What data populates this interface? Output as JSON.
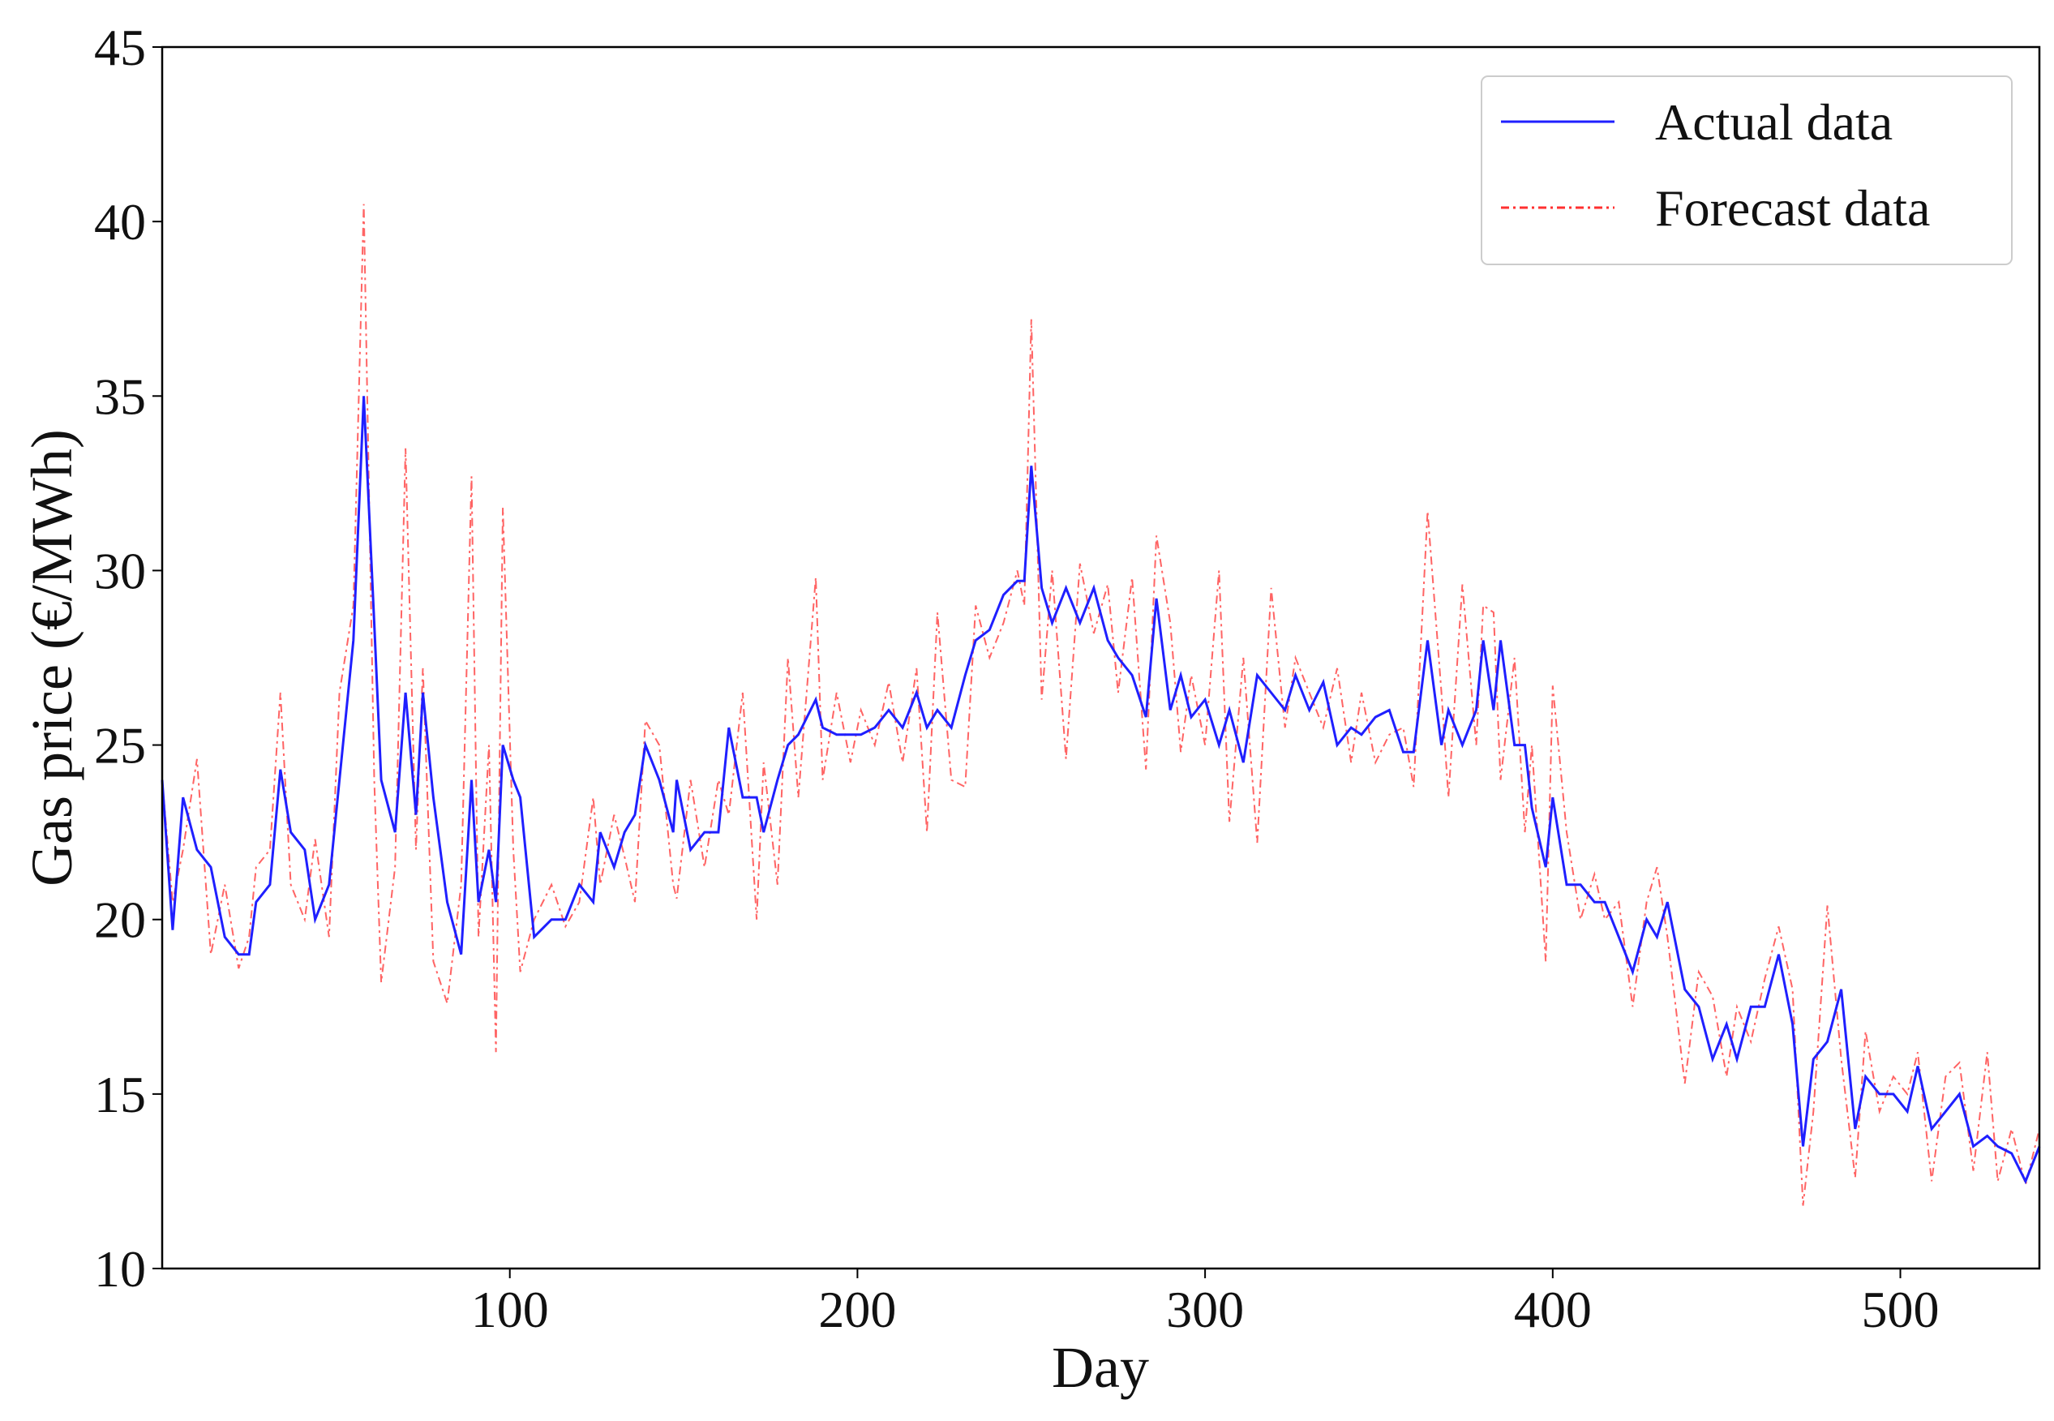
{
  "chart_data": {
    "type": "line",
    "xlabel": "Day",
    "ylabel": "Gas price (€/MWh)",
    "xlim": [
      0,
      540
    ],
    "ylim": [
      10,
      45
    ],
    "xticks": [
      100,
      200,
      300,
      400,
      500
    ],
    "yticks": [
      10,
      15,
      20,
      25,
      30,
      35,
      40,
      45
    ],
    "grid": false,
    "legend": "upper right",
    "x": [
      0,
      3,
      6,
      10,
      14,
      18,
      22,
      25,
      27,
      31,
      34,
      37,
      41,
      44,
      48,
      51,
      55,
      58,
      61,
      63,
      67,
      70,
      73,
      75,
      78,
      82,
      86,
      89,
      91,
      94,
      96,
      98,
      101,
      103,
      107,
      112,
      116,
      120,
      124,
      126,
      130,
      133,
      136,
      139,
      143,
      147,
      148,
      152,
      156,
      160,
      163,
      167,
      171,
      173,
      177,
      180,
      183,
      188,
      190,
      194,
      198,
      201,
      205,
      209,
      213,
      217,
      220,
      223,
      227,
      231,
      234,
      238,
      242,
      246,
      248,
      250,
      253,
      256,
      260,
      264,
      268,
      272,
      275,
      279,
      283,
      286,
      290,
      293,
      296,
      300,
      304,
      307,
      311,
      315,
      319,
      323,
      326,
      330,
      334,
      338,
      342,
      345,
      349,
      353,
      357,
      360,
      364,
      368,
      370,
      374,
      378,
      380,
      383,
      385,
      389,
      392,
      394,
      398,
      400,
      404,
      408,
      412,
      415,
      419,
      423,
      427,
      430,
      433,
      438,
      442,
      446,
      450,
      453,
      457,
      461,
      465,
      469,
      472,
      475,
      479,
      483,
      487,
      490,
      494,
      498,
      502,
      505,
      509,
      513,
      517,
      521,
      525,
      528,
      532,
      536,
      540
    ],
    "series": [
      {
        "name": "Actual data",
        "color": "#1f1fff",
        "style": "solid",
        "values": [
          24,
          19.7,
          23.5,
          22,
          21.5,
          19.5,
          19,
          19,
          20.5,
          21,
          24.3,
          22.5,
          22,
          20,
          21,
          24,
          28,
          35,
          28.5,
          24,
          22.5,
          26.5,
          23,
          26.5,
          23.5,
          20.5,
          19,
          24,
          20.5,
          22,
          20.5,
          25,
          24,
          23.5,
          19.5,
          20,
          20,
          21,
          20.5,
          22.5,
          21.5,
          22.5,
          23,
          25,
          24,
          22.5,
          24,
          22,
          22.5,
          22.5,
          25.5,
          23.5,
          23.5,
          22.5,
          24,
          25,
          25.3,
          26.3,
          25.5,
          25.3,
          25.3,
          25.3,
          25.5,
          26,
          25.5,
          26.5,
          25.5,
          26,
          25.5,
          27,
          28,
          28.3,
          29.3,
          29.7,
          29.7,
          33,
          29.5,
          28.5,
          29.5,
          28.5,
          29.5,
          28,
          27.5,
          27,
          25.8,
          29.2,
          26,
          27,
          25.8,
          26.3,
          25,
          26,
          24.5,
          27,
          26.5,
          26,
          27,
          26,
          26.8,
          25,
          25.5,
          25.3,
          25.8,
          26,
          24.8,
          24.8,
          28,
          25,
          26,
          25,
          26,
          28,
          26,
          28,
          25,
          25,
          23.2,
          21.5,
          23.5,
          21,
          21,
          20.5,
          20.5,
          19.5,
          18.5,
          20,
          19.5,
          20.5,
          18,
          17.5,
          16,
          17,
          16,
          17.5,
          17.5,
          19,
          17,
          13.5,
          16,
          16.5,
          18,
          14,
          15.5,
          15,
          15,
          14.5,
          15.8,
          14,
          14.5,
          15,
          13.5,
          13.8,
          13.5,
          13.3,
          12.5,
          13.5
        ]
      },
      {
        "name": "Forecast data",
        "color": "#ff3030",
        "style": "dashdot",
        "values": [
          24,
          20.5,
          22,
          24.6,
          19,
          21,
          18.6,
          19.5,
          21.5,
          22,
          26.5,
          21,
          20,
          22.3,
          19.5,
          26.5,
          29,
          40.5,
          24,
          18.2,
          21.5,
          33.5,
          22,
          27.2,
          18.8,
          17.6,
          21,
          32.7,
          19.5,
          25,
          16.2,
          31.8,
          22,
          18.5,
          20,
          21,
          19.8,
          20.5,
          23.5,
          21,
          23,
          21.8,
          20.5,
          25.7,
          25,
          21,
          20.6,
          24,
          21.5,
          24,
          23,
          26.5,
          20,
          24.5,
          21,
          27.5,
          23.5,
          29.8,
          24,
          26.5,
          24.5,
          26,
          25,
          26.8,
          24.5,
          27.2,
          22.5,
          28.8,
          24,
          23.8,
          29,
          27.5,
          28.5,
          30,
          29,
          37.2,
          26.3,
          30,
          24.6,
          30.2,
          28.2,
          29.6,
          26.5,
          29.8,
          24.3,
          31,
          28.5,
          24.8,
          27,
          25,
          30,
          22.8,
          27.5,
          22.2,
          29.5,
          25.5,
          27.5,
          26.5,
          25.5,
          27.2,
          24.5,
          26.5,
          24.5,
          25.3,
          25.5,
          23.8,
          31.7,
          26.5,
          23.5,
          29.6,
          25,
          29,
          28.8,
          24,
          27.5,
          22.5,
          25,
          18.8,
          26.7,
          22.5,
          20,
          21.3,
          20,
          20.5,
          17.5,
          20.5,
          21.5,
          19.5,
          15.3,
          18.5,
          17.8,
          15.5,
          17.5,
          16.5,
          18.3,
          19.8,
          18,
          11.8,
          14.5,
          20.4,
          16,
          12.6,
          16.8,
          14.5,
          15.5,
          15,
          16.2,
          12.5,
          15.5,
          15.9,
          12.8,
          16.2,
          12.5,
          14,
          12.4,
          14
        ]
      }
    ]
  }
}
